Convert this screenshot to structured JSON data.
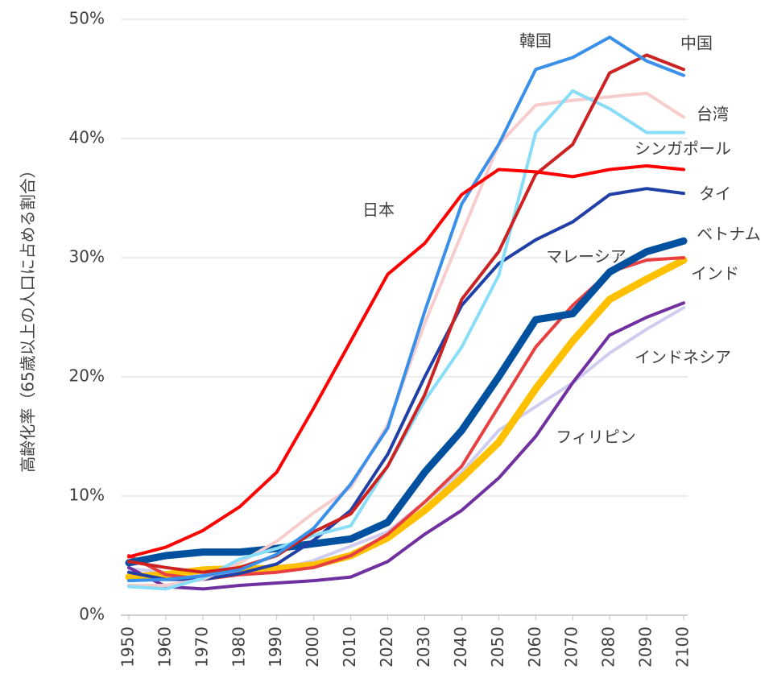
{
  "chart_data": {
    "type": "line",
    "y_label": "高齢化率（65歳以上の人口に占める割合）",
    "x": [
      1950,
      1960,
      1970,
      1980,
      1990,
      2000,
      2010,
      2020,
      2030,
      2040,
      2050,
      2060,
      2070,
      2080,
      2090,
      2100
    ],
    "xlim": [
      1950,
      2100
    ],
    "xticks": [
      1950,
      1960,
      1970,
      1980,
      1990,
      2000,
      2010,
      2020,
      2030,
      2040,
      2050,
      2060,
      2070,
      2080,
      2090,
      2100
    ],
    "ylim": [
      0,
      50
    ],
    "yticks": [
      {
        "value": 0,
        "label": "0%"
      },
      {
        "value": 10,
        "label": "10%"
      },
      {
        "value": 20,
        "label": "20%"
      },
      {
        "value": 30,
        "label": "30%"
      },
      {
        "value": 40,
        "label": "40%"
      },
      {
        "value": 50,
        "label": "50%"
      }
    ],
    "grid": true,
    "series": [
      {
        "name": "インドネシア",
        "color": "#cfcdef",
        "width": 4,
        "values": [
          3.9,
          3.6,
          3.4,
          3.5,
          3.8,
          4.6,
          5.8,
          7.0,
          9.5,
          12.0,
          15.5,
          17.5,
          19.5,
          22.0,
          24.0,
          25.8
        ]
      },
      {
        "name": "フィリピン",
        "color": "#7030a0",
        "width": 4,
        "values": [
          4.0,
          2.4,
          2.2,
          2.5,
          2.7,
          2.9,
          3.2,
          4.5,
          6.8,
          8.8,
          11.5,
          15.0,
          19.5,
          23.5,
          25.0,
          26.2
        ]
      },
      {
        "name": "インド",
        "color": "#ffc000",
        "width": 9,
        "values": [
          3.2,
          3.4,
          3.8,
          3.9,
          3.9,
          4.2,
          5.0,
          6.5,
          8.8,
          11.5,
          14.5,
          19.0,
          23.0,
          26.5,
          28.2,
          29.8
        ]
      },
      {
        "name": "マレーシア",
        "color": "#e84040",
        "width": 4,
        "values": [
          5.0,
          3.4,
          3.0,
          3.4,
          3.6,
          4.0,
          5.0,
          6.8,
          9.5,
          12.5,
          17.5,
          22.5,
          26.0,
          28.8,
          29.8,
          30.0
        ]
      },
      {
        "name": "ベトナム",
        "color": "#0050a0",
        "width": 9,
        "values": [
          4.4,
          5.0,
          5.3,
          5.3,
          5.6,
          6.0,
          6.4,
          7.8,
          12.0,
          15.5,
          20.0,
          24.8,
          25.3,
          28.8,
          30.5,
          31.4
        ]
      },
      {
        "name": "タイ",
        "color": "#2040a8",
        "width": 4,
        "values": [
          3.6,
          3.0,
          3.0,
          3.5,
          4.3,
          6.3,
          8.8,
          13.5,
          20.0,
          26.0,
          29.5,
          31.5,
          33.0,
          35.3,
          35.8,
          35.4
        ]
      },
      {
        "name": "台湾",
        "color": "#f7cccc",
        "width": 4,
        "values": [
          2.5,
          2.5,
          3.0,
          4.4,
          6.2,
          8.6,
          10.7,
          16.0,
          24.5,
          32.0,
          39.5,
          42.8,
          43.2,
          43.5,
          43.8,
          41.8
        ]
      },
      {
        "name": "シンガポール",
        "color": "#88ddf8",
        "width": 4,
        "values": [
          2.4,
          2.2,
          3.1,
          4.7,
          5.6,
          6.7,
          7.5,
          12.5,
          18.0,
          22.5,
          28.5,
          40.5,
          44.0,
          42.5,
          40.5,
          40.5
        ]
      },
      {
        "name": "中国",
        "color": "#cc2222",
        "width": 4,
        "values": [
          4.5,
          4.0,
          3.6,
          4.0,
          5.0,
          7.0,
          8.5,
          12.5,
          18.5,
          26.5,
          30.5,
          37.0,
          39.5,
          45.5,
          47.0,
          45.8
        ]
      },
      {
        "name": "韓国",
        "color": "#3a8fe8",
        "width": 4,
        "values": [
          2.9,
          3.0,
          3.3,
          3.8,
          5.1,
          7.3,
          11.0,
          15.7,
          25.5,
          34.5,
          39.5,
          45.8,
          46.8,
          48.5,
          46.5,
          45.3
        ]
      },
      {
        "name": "日本",
        "color": "#ff0000",
        "width": 4,
        "values": [
          4.9,
          5.7,
          7.1,
          9.1,
          12.0,
          17.4,
          23.0,
          28.6,
          31.2,
          35.3,
          37.4,
          37.2,
          36.8,
          37.4,
          37.7,
          37.4
        ]
      }
    ]
  }
}
